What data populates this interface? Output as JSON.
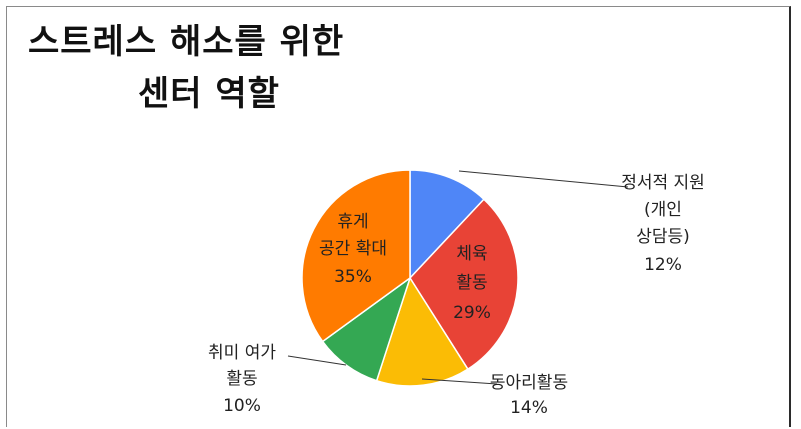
{
  "title_lines": [
    "스트레스 해소를 위한",
    "센터 역할"
  ],
  "chart_data": {
    "type": "pie",
    "title": "스트레스 해소를 위한 센터 역할",
    "start_angle_deg": 0,
    "direction": "clockwise",
    "slices": [
      {
        "label_lines": [
          "정서적 지원",
          "(개인",
          "상담등)"
        ],
        "value": 12,
        "pct_label": "12%",
        "color": "#4f86f7",
        "label_position": "outside"
      },
      {
        "label_lines": [
          "체육",
          "활동"
        ],
        "value": 29,
        "pct_label": "29%",
        "color": "#e84336",
        "label_position": "inside"
      },
      {
        "label_lines": [
          "동아리활동"
        ],
        "value": 14,
        "pct_label": "14%",
        "color": "#fbbc05",
        "label_position": "outside"
      },
      {
        "label_lines": [
          "취미 여가",
          "활동"
        ],
        "value": 10,
        "pct_label": "10%",
        "color": "#34a853",
        "label_position": "outside"
      },
      {
        "label_lines": [
          "휴게",
          "공간 확대"
        ],
        "value": 35,
        "pct_label": "35%",
        "color": "#ff7b00",
        "label_position": "inside"
      }
    ]
  }
}
